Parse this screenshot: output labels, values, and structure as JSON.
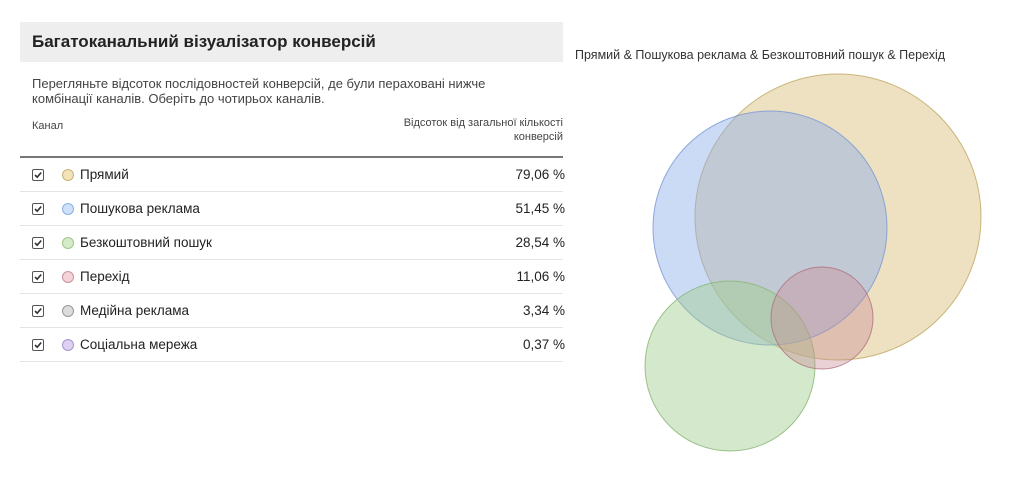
{
  "header": {
    "title": "Багатоканальний візуалізатор конверсій"
  },
  "description": "Перегляньте відсоток послідовностей конверсій, де були пераховані нижче комбінації каналів. Оберіть до чотирьох каналів.",
  "table": {
    "columns": [
      "Канал",
      "Відсоток від загальної кількості конверсій"
    ],
    "rows": [
      [
        "Прямий",
        "79,06 %"
      ],
      [
        "Пошукова реклама",
        "51,45 %"
      ],
      [
        "Безкоштовний пошук",
        "28,54 %"
      ],
      [
        "Перехід",
        "11,06 %"
      ],
      [
        "Медійна реклама",
        "3,34 %"
      ],
      [
        "Соціальна мережа",
        "0,37 %"
      ]
    ]
  },
  "venn": {
    "title": "Прямий & Пошукова реклама & Безкоштовний пошук & Перехід"
  }
}
